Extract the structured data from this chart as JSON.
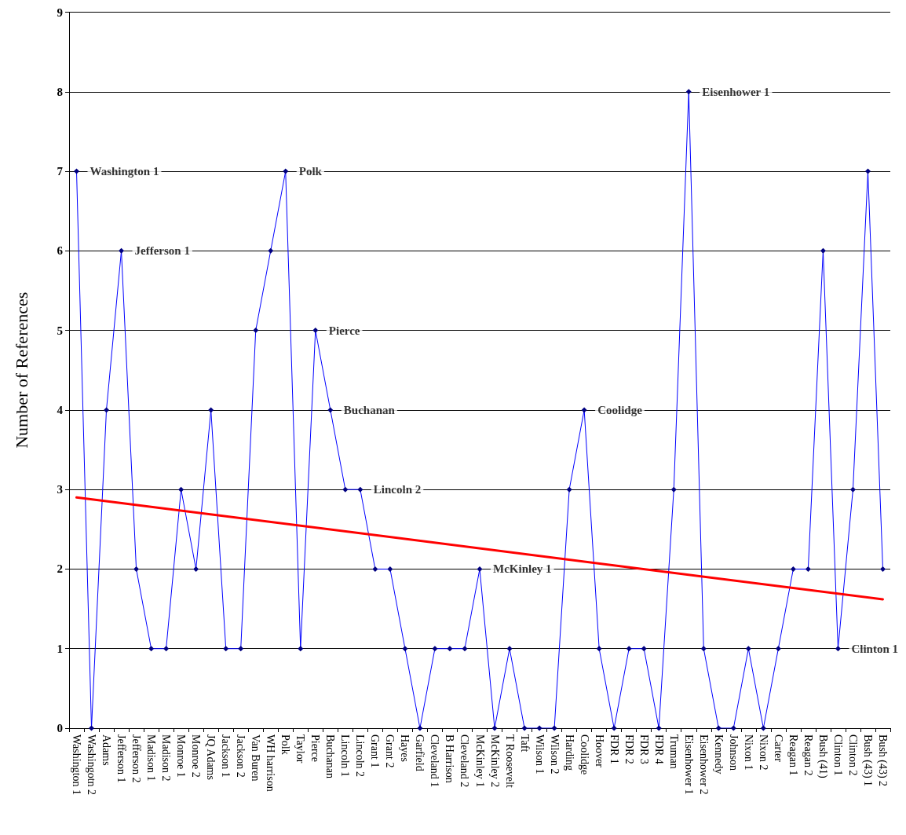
{
  "chart_data": {
    "type": "line",
    "ylabel": "Number of References",
    "categories": [
      "Washington 1",
      "Washingotn 2",
      "Adams",
      "Jefferson 1",
      "Jefferson 2",
      "Madison 1",
      "Madison 2",
      "Monroe 1",
      "Monroe 2",
      "JQ Adams",
      "Jackson 1",
      "Jackson 2",
      "Van Buren",
      "WH harrison",
      "Polk",
      "Taylor",
      "Pierce",
      "Buchanan",
      "Lincoln 1",
      "Lincoln 2",
      "Grant 1",
      "Grant 2",
      "Hayes",
      "Garfield",
      "Cleveland 1",
      "B Harrison",
      "Cleveland 2",
      "McKinley 1",
      "McKinley 2",
      "T Roosevelt",
      "Taft",
      "Wilson 1",
      "Wilson 2",
      "Harding",
      "Coolidge",
      "Hoover",
      "FDR 1",
      "FDR 2",
      "FDR 3",
      "FDR 4",
      "Truman",
      "Eisenhower 1",
      "Eisenhower 2",
      "Kennedy",
      "Johnson",
      "Nixon 1",
      "Nixon 2",
      "Carter",
      "Reagan 1",
      "Reagan 2",
      "Bush (41)",
      "Clinton 1",
      "Clinton 2",
      "Bush (43) 1",
      "Bush (43) 2"
    ],
    "series": [
      {
        "color": "#0000ff",
        "values": [
          7,
          0,
          4,
          6,
          2,
          1,
          1,
          3,
          2,
          4,
          1,
          1,
          5,
          6,
          7,
          1,
          5,
          4,
          3,
          3,
          2,
          2,
          1,
          0,
          1,
          1,
          1,
          2,
          0,
          1,
          0,
          0,
          0,
          3,
          4,
          1,
          0,
          1,
          1,
          0,
          3,
          8,
          1,
          0,
          0,
          1,
          0,
          1,
          2,
          2,
          6,
          1,
          3,
          7,
          2
        ]
      },
      {
        "type": "line",
        "color": "#ff0000",
        "marker": "none",
        "x": [
          "Washington 1",
          "Bush (43) 2"
        ],
        "values": [
          2.9,
          1.62
        ]
      }
    ],
    "ylim": [
      0,
      9
    ],
    "yticks": [
      0,
      1,
      2,
      3,
      4,
      5,
      6,
      7,
      8,
      9
    ],
    "grid": "y",
    "marker": "diamond",
    "line_style": "solid",
    "annotations": [
      {
        "text": "Washington 1",
        "x": "Washington 1",
        "y": 7
      },
      {
        "text": "Jefferson 1",
        "x": "Jefferson 1",
        "y": 6
      },
      {
        "text": "Polk",
        "x": "Polk",
        "y": 7
      },
      {
        "text": "Pierce",
        "x": "Pierce",
        "y": 5
      },
      {
        "text": "Buchanan",
        "x": "Buchanan",
        "y": 4
      },
      {
        "text": "Lincoln 2",
        "x": "Lincoln 2",
        "y": 3
      },
      {
        "text": "McKinley 1",
        "x": "McKinley 1",
        "y": 2
      },
      {
        "text": "Coolidge",
        "x": "Coolidge",
        "y": 4
      },
      {
        "text": "Eisenhower 1",
        "x": "Eisenhower 1",
        "y": 8
      },
      {
        "text": "Clinton 1",
        "x": "Clinton 1",
        "y": 1
      }
    ]
  }
}
